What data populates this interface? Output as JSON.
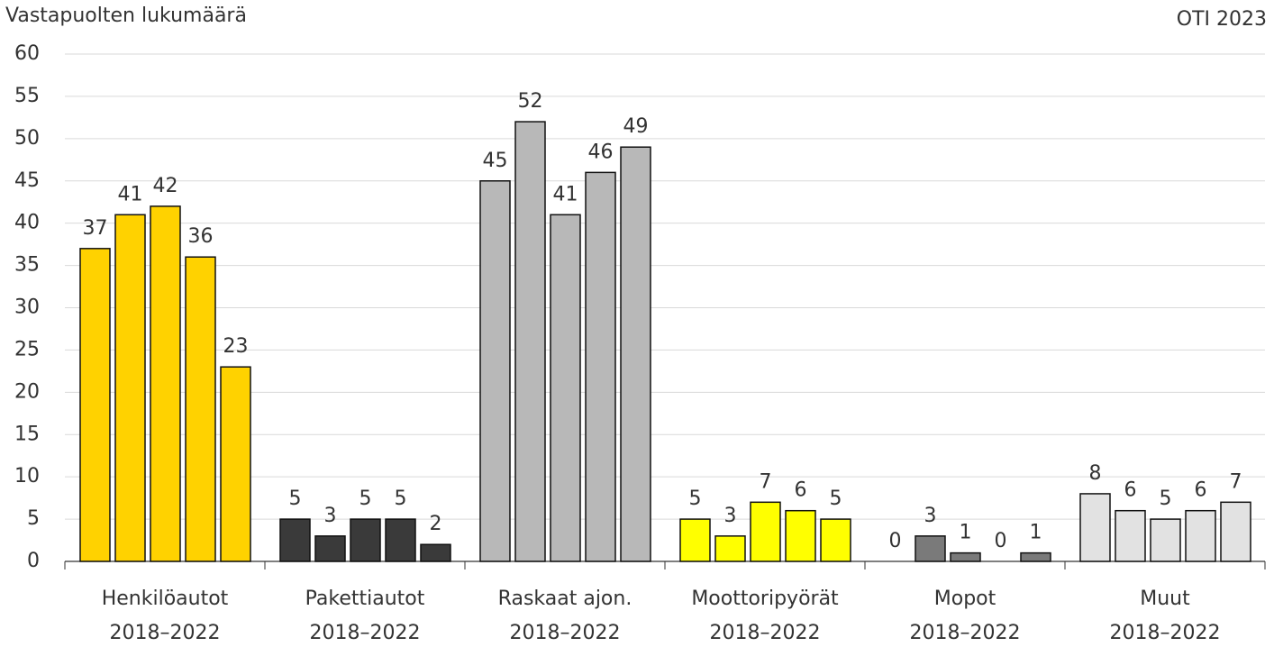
{
  "chart_data": {
    "type": "bar",
    "y_label": "Vastapuolten lukumäärä",
    "source": "OTI 2023",
    "ylim": [
      0,
      60
    ],
    "yticks": [
      0,
      5,
      10,
      15,
      20,
      25,
      30,
      35,
      40,
      45,
      50,
      55,
      60
    ],
    "grid": true,
    "groups": [
      {
        "label": [
          "Henkilöautot",
          "2018–2022"
        ],
        "color": "#ffd200",
        "values": [
          37,
          41,
          42,
          36,
          23
        ]
      },
      {
        "label": [
          "Pakettiautot",
          "2018–2022"
        ],
        "color": "#3a3a3a",
        "values": [
          5,
          3,
          5,
          5,
          2
        ]
      },
      {
        "label": [
          "Raskaat ajon.",
          "2018–2022"
        ],
        "color": "#b8b8b8",
        "values": [
          45,
          52,
          41,
          46,
          49
        ]
      },
      {
        "label": [
          "Moottoripyörät",
          "2018–2022"
        ],
        "color": "#ffff00",
        "values": [
          5,
          3,
          7,
          6,
          5
        ]
      },
      {
        "label": [
          "Mopot",
          "2018–2022"
        ],
        "color": "#7a7a7a",
        "values": [
          0,
          3,
          1,
          0,
          1
        ]
      },
      {
        "label": [
          "Muut",
          "2018–2022"
        ],
        "color": "#e2e2e2",
        "values": [
          8,
          6,
          5,
          6,
          7
        ]
      }
    ]
  }
}
